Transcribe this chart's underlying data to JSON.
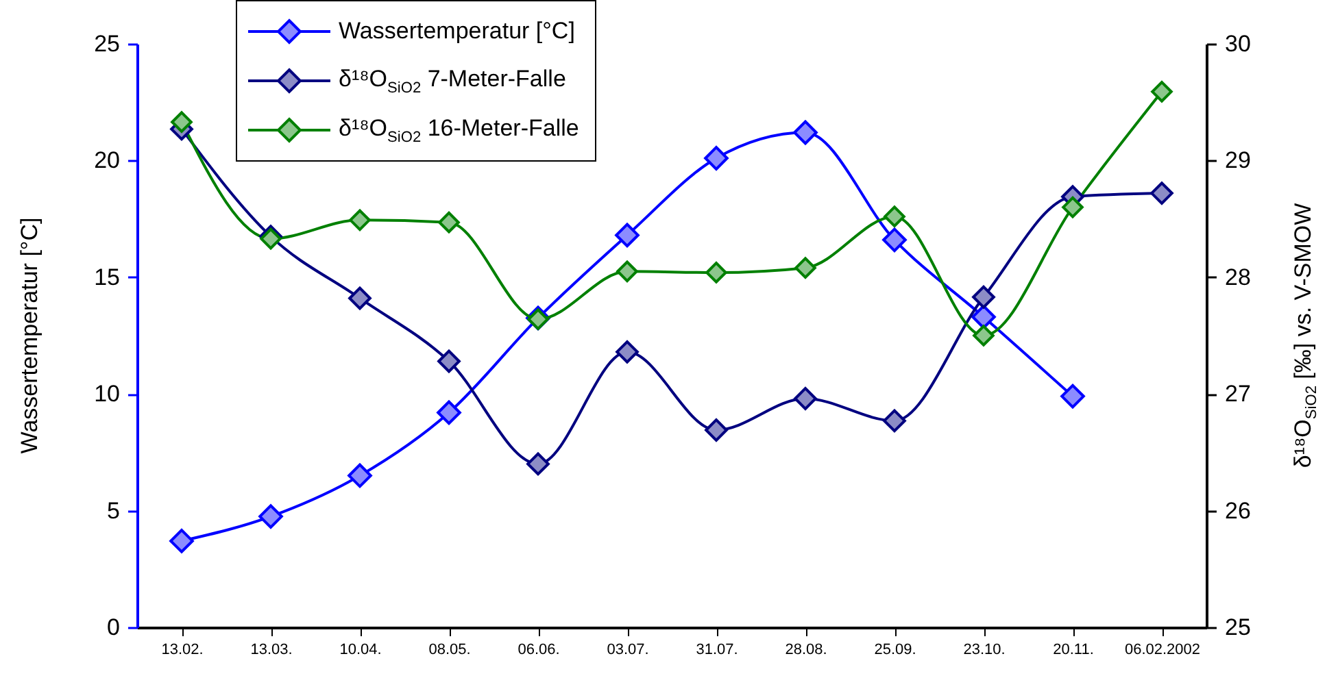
{
  "chart_data": {
    "type": "line",
    "ylabel": "Wassertemperatur [°C]",
    "y2label": "δ¹⁸O$_{SiO2}$ [‰] vs. V-SMOW",
    "categories": [
      "13.02.",
      "13.03.",
      "10.04.",
      "08.05.",
      "06.06.",
      "03.07.",
      "31.07.",
      "28.08.",
      "25.09.",
      "23.10.",
      "20.11.",
      "06.02.2002"
    ],
    "series": [
      {
        "name": "Wassertemperatur [°C]",
        "color": "#0000ff",
        "values": [
          3.7,
          4.75,
          6.5,
          9.2,
          13.25,
          16.8,
          20.1,
          21.2,
          16.6,
          13.3,
          9.9,
          null
        ]
      },
      {
        "name": "δ¹⁸O$_{SiO2}$  7-Meter-Falle",
        "color": "#000080",
        "axis": "y2",
        "values": [
          29.27,
          28.35,
          27.82,
          27.28,
          26.4,
          27.36,
          26.69,
          26.96,
          26.77,
          27.83,
          28.69,
          28.72
        ]
      },
      {
        "name": "δ¹⁸O$_{SiO2}$ 16-Meter-Falle",
        "color": "#008000",
        "axis": "y2",
        "values": [
          29.33,
          28.33,
          28.49,
          28.47,
          27.64,
          28.05,
          28.04,
          28.08,
          28.52,
          27.5,
          28.6,
          29.59
        ]
      }
    ],
    "ylim": [
      0,
      25
    ],
    "yticks": [
      0,
      5,
      10,
      15,
      20,
      25
    ],
    "y2lim": [
      25,
      30
    ],
    "y2ticks": [
      25,
      26,
      27,
      28,
      29,
      30
    ],
    "legend": "top left",
    "grid": false,
    "marker": "diamond",
    "line_style": "solid"
  }
}
